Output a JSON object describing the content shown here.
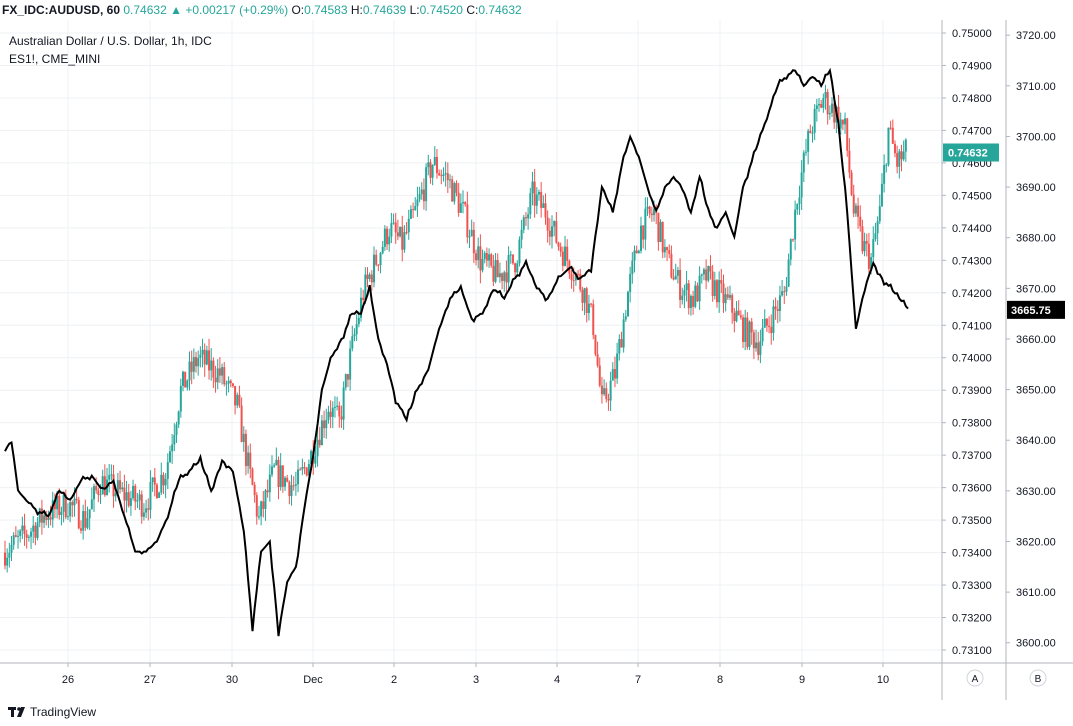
{
  "header": {
    "symbol": "FX_IDC:AUDUSD, 60",
    "last": "0.74632",
    "arrow": "▲",
    "change": "+0.00217 (+0.29%)",
    "o_label": "O:",
    "o": "0.74583",
    "h_label": "H:",
    "h": "0.74639",
    "l_label": "L:",
    "l": "0.74520",
    "c_label": "C:",
    "c": "0.74632"
  },
  "legend": {
    "main": "Australian Dollar / U.S. Dollar, 1h, IDC",
    "compare": "ES1!, CME_MINI"
  },
  "footer": {
    "brand": "TradingView"
  },
  "axis_buttons": {
    "a": "A",
    "b": "B"
  },
  "colors": {
    "up": "#26a69a",
    "down": "#ef5350",
    "compare": "#000000",
    "grid": "#eef0f3",
    "axis": "#b2b5be"
  },
  "chart_data": {
    "type": "candlestick",
    "x_ticks": [
      "26",
      "27",
      "30",
      "Dec",
      "2",
      "3",
      "4",
      "7",
      "8",
      "9",
      "10"
    ],
    "left_axis": {
      "ticks": [
        "0.75000",
        "0.74900",
        "0.74800",
        "0.74700",
        "0.74600",
        "0.74500",
        "0.74400",
        "0.74300",
        "0.74200",
        "0.74100",
        "0.74000",
        "0.73900",
        "0.73800",
        "0.73700",
        "0.73600",
        "0.73500",
        "0.73400",
        "0.73300",
        "0.73200",
        "0.73100"
      ],
      "last_label": "0.74632",
      "range": [
        0.7306,
        0.7504
      ]
    },
    "right_axis": {
      "ticks": [
        "3720.00",
        "3710.00",
        "3700.00",
        "3690.00",
        "3680.00",
        "3670.00",
        "3660.00",
        "3650.00",
        "3640.00",
        "3630.00",
        "3620.00",
        "3610.00",
        "3600.00"
      ],
      "last_label": "3665.75",
      "range": [
        3596,
        3723
      ]
    },
    "series": [
      {
        "name": "Australian Dollar / U.S. Dollar, 1h, IDC",
        "kind": "candlestick",
        "anchors": [
          [
            0,
            0.734
          ],
          [
            10,
            0.7345
          ],
          [
            20,
            0.7352
          ],
          [
            30,
            0.7355
          ],
          [
            38,
            0.735
          ],
          [
            45,
            0.7362
          ],
          [
            55,
            0.7358
          ],
          [
            65,
            0.7355
          ],
          [
            75,
            0.7365
          ],
          [
            82,
            0.739
          ],
          [
            90,
            0.74
          ],
          [
            100,
            0.7395
          ],
          [
            108,
            0.7385
          ],
          [
            112,
            0.737
          ],
          [
            118,
            0.735
          ],
          [
            125,
            0.7365
          ],
          [
            135,
            0.736
          ],
          [
            142,
            0.737
          ],
          [
            150,
            0.7385
          ],
          [
            155,
            0.738
          ],
          [
            160,
            0.74
          ],
          [
            166,
            0.742
          ],
          [
            172,
            0.743
          ],
          [
            178,
            0.744
          ],
          [
            184,
            0.7435
          ],
          [
            190,
            0.7445
          ],
          [
            198,
            0.746
          ],
          [
            205,
            0.7455
          ],
          [
            212,
            0.7445
          ],
          [
            220,
            0.743
          ],
          [
            228,
            0.7425
          ],
          [
            236,
            0.743
          ],
          [
            244,
            0.745
          ],
          [
            250,
            0.7445
          ],
          [
            256,
            0.7435
          ],
          [
            262,
            0.7428
          ],
          [
            268,
            0.742
          ],
          [
            272,
            0.741
          ],
          [
            276,
            0.7385
          ],
          [
            282,
            0.7395
          ],
          [
            288,
            0.742
          ],
          [
            294,
            0.744
          ],
          [
            300,
            0.7445
          ],
          [
            306,
            0.743
          ],
          [
            312,
            0.7422
          ],
          [
            318,
            0.7418
          ],
          [
            324,
            0.7425
          ],
          [
            330,
            0.742
          ],
          [
            336,
            0.7415
          ],
          [
            342,
            0.7408
          ],
          [
            348,
            0.7405
          ],
          [
            354,
            0.7412
          ],
          [
            360,
            0.742
          ],
          [
            366,
            0.745
          ],
          [
            372,
            0.747
          ],
          [
            378,
            0.748
          ],
          [
            384,
            0.7475
          ],
          [
            388,
            0.747
          ],
          [
            392,
            0.7445
          ],
          [
            396,
            0.7435
          ],
          [
            400,
            0.743
          ],
          [
            404,
            0.7445
          ],
          [
            408,
            0.747
          ],
          [
            412,
            0.746
          ],
          [
            416,
            0.7463
          ]
        ],
        "bars": 416
      },
      {
        "name": "ES1!, CME_MINI",
        "kind": "line",
        "anchors": [
          [
            0,
            3638
          ],
          [
            3,
            3640
          ],
          [
            6,
            3630
          ],
          [
            10,
            3628
          ],
          [
            15,
            3626
          ],
          [
            20,
            3625
          ],
          [
            25,
            3630
          ],
          [
            30,
            3628
          ],
          [
            35,
            3632
          ],
          [
            40,
            3633
          ],
          [
            45,
            3630
          ],
          [
            50,
            3632
          ],
          [
            55,
            3625
          ],
          [
            60,
            3618
          ],
          [
            65,
            3618
          ],
          [
            70,
            3620
          ],
          [
            75,
            3625
          ],
          [
            80,
            3632
          ],
          [
            85,
            3634
          ],
          [
            90,
            3636
          ],
          [
            95,
            3630
          ],
          [
            100,
            3636
          ],
          [
            105,
            3634
          ],
          [
            110,
            3622
          ],
          [
            114,
            3603
          ],
          [
            118,
            3618
          ],
          [
            122,
            3620
          ],
          [
            126,
            3602
          ],
          [
            130,
            3612
          ],
          [
            134,
            3615
          ],
          [
            138,
            3627
          ],
          [
            142,
            3637
          ],
          [
            146,
            3650
          ],
          [
            150,
            3656
          ],
          [
            155,
            3660
          ],
          [
            160,
            3665
          ],
          [
            164,
            3665
          ],
          [
            168,
            3670
          ],
          [
            172,
            3660
          ],
          [
            176,
            3655
          ],
          [
            180,
            3648
          ],
          [
            185,
            3644
          ],
          [
            190,
            3650
          ],
          [
            195,
            3654
          ],
          [
            200,
            3662
          ],
          [
            205,
            3668
          ],
          [
            210,
            3670
          ],
          [
            215,
            3664
          ],
          [
            220,
            3665
          ],
          [
            225,
            3670
          ],
          [
            230,
            3668
          ],
          [
            235,
            3672
          ],
          [
            240,
            3675
          ],
          [
            245,
            3670
          ],
          [
            250,
            3668
          ],
          [
            255,
            3672
          ],
          [
            260,
            3674
          ],
          [
            265,
            3672
          ],
          [
            270,
            3674
          ],
          [
            275,
            3690
          ],
          [
            280,
            3685
          ],
          [
            284,
            3694
          ],
          [
            288,
            3700
          ],
          [
            292,
            3696
          ],
          [
            296,
            3690
          ],
          [
            300,
            3685
          ],
          [
            304,
            3690
          ],
          [
            308,
            3692
          ],
          [
            312,
            3690
          ],
          [
            316,
            3685
          ],
          [
            320,
            3692
          ],
          [
            324,
            3685
          ],
          [
            328,
            3682
          ],
          [
            332,
            3685
          ],
          [
            336,
            3680
          ],
          [
            340,
            3690
          ],
          [
            344,
            3695
          ],
          [
            348,
            3700
          ],
          [
            352,
            3705
          ],
          [
            356,
            3710
          ],
          [
            360,
            3712
          ],
          [
            364,
            3713
          ],
          [
            368,
            3710
          ],
          [
            372,
            3712
          ],
          [
            376,
            3710
          ],
          [
            380,
            3713
          ],
          [
            384,
            3702
          ],
          [
            388,
            3685
          ],
          [
            392,
            3662
          ],
          [
            396,
            3670
          ],
          [
            400,
            3675
          ],
          [
            404,
            3672
          ],
          [
            408,
            3670
          ],
          [
            412,
            3668
          ],
          [
            416,
            3666
          ]
        ]
      }
    ]
  }
}
